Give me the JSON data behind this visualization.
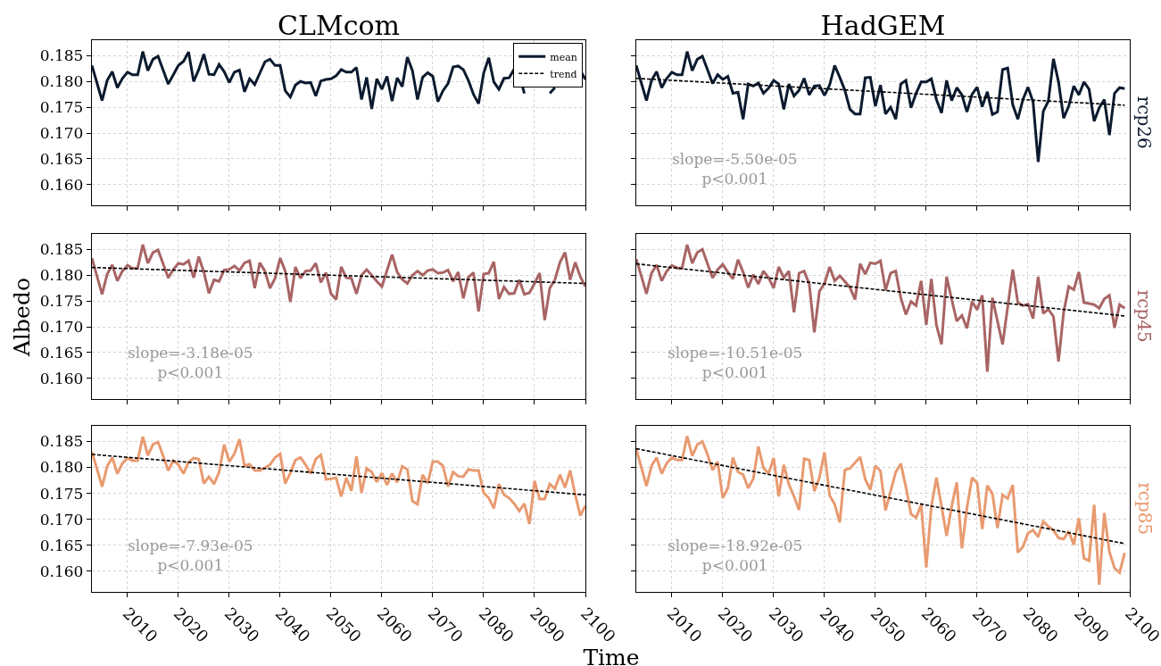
{
  "chart_data": [
    {
      "type": "line",
      "title": "CLMcom",
      "xlim": [
        2003,
        2100
      ],
      "xticks": [
        2010,
        2020,
        2030,
        2040,
        2050,
        2060,
        2070,
        2080,
        2090,
        2100
      ],
      "ylim": [
        0.156,
        0.188
      ],
      "yticks": [
        {
          "value": 0.16,
          "label": "0.160"
        },
        0.165,
        {
          "value": 0.17,
          "label": "0.170"
        },
        0.175,
        {
          "value": 0.18,
          "label": "0.180"
        },
        0.185
      ],
      "grid": true,
      "legend": "top right",
      "tick_labels": "y",
      "line_style": "solid",
      "x": [
        2003,
        2004,
        2005,
        2006,
        2007,
        2008,
        2009,
        2010,
        2011,
        2012,
        2013,
        2014,
        2015,
        2016,
        2017,
        2018,
        2019,
        2020,
        2021,
        2022,
        2023,
        2024,
        2025,
        2026,
        2027,
        2028,
        2029,
        2030,
        2031,
        2032,
        2033,
        2034,
        2035,
        2036,
        2037,
        2038,
        2039,
        2040,
        2041,
        2042,
        2043,
        2044,
        2045,
        2046,
        2047,
        2048,
        2049,
        2050,
        2051,
        2052,
        2053,
        2054,
        2055,
        2056,
        2057,
        2058,
        2059,
        2060,
        2061,
        2062,
        2063,
        2064,
        2065,
        2066,
        2067,
        2068,
        2069,
        2070,
        2071,
        2072,
        2073,
        2074,
        2075,
        2076,
        2077,
        2078,
        2079,
        2080,
        2081,
        2082,
        2083,
        2084,
        2085,
        2086,
        2087,
        2088,
        2089,
        2090,
        2091,
        2092,
        2093,
        2094,
        2095,
        2096,
        2097,
        2098,
        2099,
        2100
      ],
      "series": [
        {
          "name": "mean",
          "color": "#0b1a2e",
          "values": [
            0.1831,
            0.1797,
            0.1763,
            0.1802,
            0.1819,
            0.1788,
            0.1806,
            0.1818,
            0.1813,
            0.1813,
            0.1858,
            0.1821,
            0.1843,
            0.1849,
            0.1822,
            0.1795,
            0.1813,
            0.1831,
            0.1839,
            0.1857,
            0.18,
            0.1823,
            0.1853,
            0.1814,
            0.1813,
            0.1833,
            0.1819,
            0.1798,
            0.1818,
            0.1822,
            0.178,
            0.1805,
            0.1794,
            0.1816,
            0.1838,
            0.1843,
            0.1831,
            0.1831,
            0.1782,
            0.177,
            0.1793,
            0.18,
            0.1797,
            0.1798,
            0.1772,
            0.1801,
            0.1804,
            0.1805,
            0.1811,
            0.1823,
            0.1818,
            0.1818,
            0.1827,
            0.1765,
            0.1808,
            0.1747,
            0.1805,
            0.1785,
            0.181,
            0.1762,
            0.1807,
            0.179,
            0.1847,
            0.1821,
            0.1765,
            0.1808,
            0.1817,
            0.181,
            0.1761,
            0.1782,
            0.1796,
            0.1828,
            0.183,
            0.1823,
            0.1802,
            0.1775,
            0.1757,
            0.1816,
            0.1846,
            0.1799,
            0.1785,
            0.1806,
            0.1807,
            0.1824,
            0.1813,
            0.1777,
            null,
            null,
            null,
            null,
            0.1777,
            0.1788,
            null,
            null,
            null,
            null,
            0.1821,
            0.1804
          ]
        },
        {
          "name": "trend",
          "type": "line",
          "line_style": "dashed",
          "color": "#000000",
          "values": [
            null,
            null,
            null,
            null,
            null,
            null,
            null,
            null,
            null,
            null,
            null,
            null,
            null,
            null,
            null,
            null,
            null,
            null,
            null,
            null,
            null,
            null,
            null,
            null,
            null,
            null,
            null,
            null,
            null,
            null,
            null,
            null,
            null,
            null,
            null,
            null,
            null,
            null,
            null,
            null,
            null,
            null,
            null,
            null,
            null,
            null,
            null,
            null,
            null,
            null,
            null,
            null,
            null,
            null,
            null,
            null,
            null,
            null,
            null,
            null,
            null,
            null,
            null,
            null,
            null,
            null,
            null,
            null,
            null,
            null,
            null,
            null,
            null,
            null,
            null,
            null,
            null,
            null,
            null,
            null,
            null,
            null,
            null,
            null,
            null,
            null,
            null,
            null,
            null,
            null,
            null,
            null,
            null,
            null,
            null,
            null,
            null,
            null
          ]
        }
      ]
    },
    {
      "type": "line",
      "title": "HadGEM",
      "y2label": "rcp26",
      "annotations": [
        "slope=-5.50e-05\np<0.001"
      ],
      "xlim": [
        2003,
        2100
      ],
      "xticks": [
        2010,
        2020,
        2030,
        2040,
        2050,
        2060,
        2070,
        2080,
        2090,
        2100
      ],
      "ylim": [
        0.156,
        0.188
      ],
      "yticks": [
        {
          "value": 0.16,
          "label": null
        },
        {
          "value": 0.165,
          "label": null
        },
        {
          "value": 0.17,
          "label": null
        },
        {
          "value": 0.175,
          "label": null
        },
        {
          "value": 0.18,
          "label": null
        },
        {
          "value": 0.185,
          "label": null
        }
      ],
      "grid": true,
      "tick_labels": false,
      "line_style": "solid",
      "x": [
        2003,
        2004,
        2005,
        2006,
        2007,
        2008,
        2009,
        2010,
        2011,
        2012,
        2013,
        2014,
        2015,
        2016,
        2017,
        2018,
        2019,
        2020,
        2021,
        2022,
        2023,
        2024,
        2025,
        2026,
        2027,
        2028,
        2029,
        2030,
        2031,
        2032,
        2033,
        2034,
        2035,
        2036,
        2037,
        2038,
        2039,
        2040,
        2041,
        2042,
        2043,
        2044,
        2045,
        2046,
        2047,
        2048,
        2049,
        2050,
        2051,
        2052,
        2053,
        2054,
        2055,
        2056,
        2057,
        2058,
        2059,
        2060,
        2061,
        2062,
        2063,
        2064,
        2065,
        2066,
        2067,
        2068,
        2069,
        2070,
        2071,
        2072,
        2073,
        2074,
        2075,
        2076,
        2077,
        2078,
        2079,
        2080,
        2081,
        2082,
        2083,
        2084,
        2085,
        2086,
        2087,
        2088,
        2089,
        2090,
        2091,
        2092,
        2093,
        2094,
        2095,
        2096,
        2097,
        2098,
        2099
      ],
      "series": [
        {
          "color": "#0b1a2e",
          "values": [
            0.1831,
            0.1797,
            0.1763,
            0.1802,
            0.1819,
            0.1788,
            0.1806,
            0.1818,
            0.1813,
            0.1813,
            0.1858,
            0.1821,
            0.1843,
            0.1849,
            0.1823,
            0.1796,
            0.1813,
            0.1804,
            0.181,
            0.1777,
            0.1779,
            0.1727,
            0.1795,
            0.1791,
            0.1797,
            0.1777,
            0.1787,
            0.1802,
            0.1795,
            0.1746,
            0.1795,
            0.1772,
            0.1783,
            0.1806,
            0.1774,
            0.1791,
            0.1792,
            0.1773,
            0.1793,
            0.1831,
            0.1808,
            0.1783,
            0.1746,
            0.1737,
            0.1737,
            0.1807,
            0.1808,
            0.1752,
            0.1793,
            0.1737,
            0.175,
            0.1727,
            0.1795,
            0.1802,
            0.1749,
            0.1777,
            0.1799,
            0.1799,
            0.1805,
            0.1765,
            0.1739,
            0.1802,
            0.1763,
            0.1788,
            0.1774,
            0.1741,
            0.1775,
            0.1789,
            0.1751,
            0.178,
            0.1736,
            0.1741,
            0.1823,
            0.1826,
            0.1755,
            0.1727,
            0.1765,
            0.1789,
            0.176,
            0.1644,
            0.1742,
            0.1762,
            0.1844,
            0.1799,
            0.1729,
            0.1752,
            0.1791,
            0.1774,
            0.1799,
            0.1785,
            0.1723,
            0.1749,
            0.1765,
            0.1696,
            0.1777,
            0.1788,
            0.1786
          ]
        },
        {
          "type": "line",
          "line_style": "dashed",
          "color": "#000000",
          "x": [
            2003,
            2099
          ],
          "values": [
            0.1806,
            0.1754
          ]
        }
      ]
    },
    {
      "type": "line",
      "ylabel": "Albedo",
      "annotations": [
        "slope=-3.18e-05\np<0.001"
      ],
      "xlim": [
        2003,
        2100
      ],
      "xticks": [
        2010,
        2020,
        2030,
        2040,
        2050,
        2060,
        2070,
        2080,
        2090,
        2100
      ],
      "ylim": [
        0.156,
        0.188
      ],
      "yticks": [
        {
          "value": 0.16,
          "label": "0.160"
        },
        0.165,
        {
          "value": 0.17,
          "label": "0.170"
        },
        0.175,
        {
          "value": 0.18,
          "label": "0.180"
        },
        0.185
      ],
      "grid": true,
      "tick_labels": "y",
      "line_style": "solid",
      "x": [
        2003,
        2004,
        2005,
        2006,
        2007,
        2008,
        2009,
        2010,
        2011,
        2012,
        2013,
        2014,
        2015,
        2016,
        2017,
        2018,
        2019,
        2020,
        2021,
        2022,
        2023,
        2024,
        2025,
        2026,
        2027,
        2028,
        2029,
        2030,
        2031,
        2032,
        2033,
        2034,
        2035,
        2036,
        2037,
        2038,
        2039,
        2040,
        2041,
        2042,
        2043,
        2044,
        2045,
        2046,
        2047,
        2048,
        2049,
        2050,
        2051,
        2052,
        2053,
        2054,
        2055,
        2056,
        2057,
        2058,
        2059,
        2060,
        2061,
        2062,
        2063,
        2064,
        2065,
        2066,
        2067,
        2068,
        2069,
        2070,
        2071,
        2072,
        2073,
        2074,
        2075,
        2076,
        2077,
        2078,
        2079,
        2080,
        2081,
        2082,
        2083,
        2084,
        2085,
        2086,
        2087,
        2088,
        2089,
        2090,
        2091,
        2092,
        2093,
        2094,
        2095,
        2096,
        2097,
        2098,
        2099,
        2100
      ],
      "series": [
        {
          "color": "#a86464",
          "values": [
            0.1833,
            0.1798,
            0.1763,
            0.1802,
            0.182,
            0.1789,
            0.1808,
            0.1819,
            0.1813,
            0.1814,
            0.1859,
            0.1823,
            0.1844,
            0.1849,
            0.1822,
            0.1795,
            0.1811,
            0.1823,
            0.1821,
            0.1828,
            0.1795,
            0.1836,
            0.1806,
            0.1765,
            0.1791,
            0.1788,
            0.181,
            0.1811,
            0.1818,
            0.1809,
            0.1824,
            0.1828,
            0.1775,
            0.1824,
            0.1808,
            0.1775,
            0.1794,
            0.1833,
            0.1808,
            0.1748,
            0.1816,
            0.1794,
            0.1808,
            0.1809,
            0.1823,
            0.1786,
            0.1805,
            0.1764,
            0.1753,
            0.1816,
            0.1795,
            0.1794,
            0.1764,
            0.18,
            0.1811,
            0.18,
            0.1788,
            0.1778,
            0.1809,
            0.184,
            0.1806,
            0.1792,
            0.1784,
            0.18,
            0.1808,
            0.18,
            0.1809,
            0.1811,
            0.1804,
            0.1805,
            0.181,
            0.1788,
            0.1806,
            0.1755,
            0.1796,
            0.1805,
            0.173,
            0.1802,
            0.1804,
            0.1826,
            0.1754,
            0.1777,
            0.1764,
            0.1765,
            0.1791,
            0.1763,
            0.1766,
            0.1784,
            0.1804,
            0.1713,
            0.1775,
            0.1791,
            0.1825,
            0.1844,
            0.1791,
            0.1825,
            0.1797,
            0.1778
          ]
        },
        {
          "type": "line",
          "line_style": "dashed",
          "color": "#000000",
          "x": [
            2003,
            2100
          ],
          "values": [
            0.1815,
            0.1784
          ]
        }
      ]
    },
    {
      "type": "line",
      "y2label": "rcp45",
      "annotations": [
        "slope=-10.51e-05\np<0.001"
      ],
      "xlim": [
        2003,
        2100
      ],
      "xticks": [
        2010,
        2020,
        2030,
        2040,
        2050,
        2060,
        2070,
        2080,
        2090,
        2100
      ],
      "ylim": [
        0.156,
        0.188
      ],
      "yticks": [
        {
          "value": 0.16,
          "label": null
        },
        {
          "value": 0.165,
          "label": null
        },
        {
          "value": 0.17,
          "label": null
        },
        {
          "value": 0.175,
          "label": null
        },
        {
          "value": 0.18,
          "label": null
        },
        {
          "value": 0.185,
          "label": null
        }
      ],
      "grid": true,
      "tick_labels": false,
      "line_style": "solid",
      "x": [
        2003,
        2004,
        2005,
        2006,
        2007,
        2008,
        2009,
        2010,
        2011,
        2012,
        2013,
        2014,
        2015,
        2016,
        2017,
        2018,
        2019,
        2020,
        2021,
        2022,
        2023,
        2024,
        2025,
        2026,
        2027,
        2028,
        2029,
        2030,
        2031,
        2032,
        2033,
        2034,
        2035,
        2036,
        2037,
        2038,
        2039,
        2040,
        2041,
        2042,
        2043,
        2044,
        2045,
        2046,
        2047,
        2048,
        2049,
        2050,
        2051,
        2052,
        2053,
        2054,
        2055,
        2056,
        2057,
        2058,
        2059,
        2060,
        2061,
        2062,
        2063,
        2064,
        2065,
        2066,
        2067,
        2068,
        2069,
        2070,
        2071,
        2072,
        2073,
        2074,
        2075,
        2076,
        2077,
        2078,
        2079,
        2080,
        2081,
        2082,
        2083,
        2084,
        2085,
        2086,
        2087,
        2088,
        2089,
        2090,
        2091,
        2092,
        2093,
        2094,
        2095,
        2096,
        2097,
        2098,
        2099
      ],
      "series": [
        {
          "color": "#a86464",
          "values": [
            0.1831,
            0.1798,
            0.1764,
            0.1804,
            0.182,
            0.1789,
            0.1808,
            0.1819,
            0.1814,
            0.1814,
            0.1859,
            0.1823,
            0.1844,
            0.185,
            0.1822,
            0.1795,
            0.1811,
            0.1821,
            0.1806,
            0.1793,
            0.183,
            0.1806,
            0.1776,
            0.1801,
            0.1783,
            0.1808,
            0.1795,
            0.1775,
            0.1816,
            0.1795,
            0.1808,
            0.1728,
            0.1804,
            0.1808,
            0.1783,
            0.1689,
            0.1769,
            0.1784,
            0.1816,
            0.1789,
            0.1799,
            0.1788,
            0.1776,
            0.1753,
            0.1822,
            0.1802,
            0.1824,
            0.1822,
            0.1828,
            0.1771,
            0.1804,
            0.1808,
            0.1756,
            0.1724,
            0.1749,
            0.1741,
            0.1789,
            0.1704,
            0.1793,
            0.1703,
            0.1666,
            0.1797,
            0.1753,
            0.1711,
            0.1722,
            0.1697,
            0.1749,
            0.1733,
            0.1761,
            0.1613,
            0.1756,
            0.1711,
            0.1666,
            0.1738,
            0.1811,
            0.1747,
            0.1741,
            0.1744,
            0.1716,
            0.1797,
            0.1726,
            0.1734,
            0.172,
            0.1633,
            0.1728,
            0.1778,
            0.1772,
            0.1806,
            0.1747,
            0.1745,
            0.1743,
            0.1736,
            0.1754,
            0.1761,
            0.1698,
            0.1743,
            0.1736
          ]
        },
        {
          "type": "line",
          "line_style": "dashed",
          "color": "#000000",
          "x": [
            2003,
            2099
          ],
          "values": [
            0.1822,
            0.1721
          ]
        }
      ]
    },
    {
      "type": "line",
      "xlabel": "Time",
      "annotations": [
        "slope=-7.93e-05\np<0.001"
      ],
      "xlim": [
        2003,
        2100
      ],
      "xticks": [
        2010,
        2020,
        2030,
        2040,
        2050,
        2060,
        2070,
        2080,
        2090,
        2100
      ],
      "ylim": [
        0.156,
        0.188
      ],
      "yticks": [
        {
          "value": 0.16,
          "label": "0.160"
        },
        0.165,
        {
          "value": 0.17,
          "label": "0.170"
        },
        0.175,
        {
          "value": 0.18,
          "label": "0.180"
        },
        0.185
      ],
      "grid": true,
      "line_style": "solid",
      "x": [
        2003,
        2004,
        2005,
        2006,
        2007,
        2008,
        2009,
        2010,
        2011,
        2012,
        2013,
        2014,
        2015,
        2016,
        2017,
        2018,
        2019,
        2020,
        2021,
        2022,
        2023,
        2024,
        2025,
        2026,
        2027,
        2028,
        2029,
        2030,
        2031,
        2032,
        2033,
        2034,
        2035,
        2036,
        2037,
        2038,
        2039,
        2040,
        2041,
        2042,
        2043,
        2044,
        2045,
        2046,
        2047,
        2048,
        2049,
        2050,
        2051,
        2052,
        2053,
        2054,
        2055,
        2056,
        2057,
        2058,
        2059,
        2060,
        2061,
        2062,
        2063,
        2064,
        2065,
        2066,
        2067,
        2068,
        2069,
        2070,
        2071,
        2072,
        2073,
        2074,
        2075,
        2076,
        2077,
        2078,
        2079,
        2080,
        2081,
        2082,
        2083,
        2084,
        2085,
        2086,
        2087,
        2088,
        2089,
        2090,
        2091,
        2092,
        2093,
        2094,
        2095,
        2096,
        2097,
        2098,
        2099,
        2100
      ],
      "series": [
        {
          "color": "#e89a70",
          "values": [
            0.183,
            0.1797,
            0.1763,
            0.1802,
            0.1819,
            0.1788,
            0.1808,
            0.1818,
            0.1813,
            0.1813,
            0.1859,
            0.1823,
            0.1844,
            0.1849,
            0.1822,
            0.1794,
            0.1813,
            0.1805,
            0.1788,
            0.181,
            0.1818,
            0.1816,
            0.1769,
            0.1782,
            0.1768,
            0.1791,
            0.1844,
            0.1811,
            0.1826,
            0.1854,
            0.1803,
            0.1806,
            0.1794,
            0.1794,
            0.1799,
            0.1805,
            0.1819,
            0.1826,
            0.1769,
            0.1789,
            0.1814,
            0.1819,
            0.1805,
            0.1788,
            0.1816,
            0.1824,
            0.1777,
            0.1778,
            0.178,
            0.1744,
            0.178,
            0.1755,
            0.1821,
            0.1751,
            0.1798,
            0.1791,
            0.1772,
            0.1789,
            0.1766,
            0.1788,
            0.1771,
            0.1802,
            0.1796,
            0.1735,
            0.1729,
            0.1786,
            0.1769,
            0.1811,
            0.1811,
            0.1803,
            0.1763,
            0.1791,
            0.1783,
            0.1782,
            0.1796,
            0.1794,
            0.1794,
            0.1751,
            0.1741,
            0.1721,
            0.1768,
            0.1747,
            0.1741,
            0.173,
            0.1716,
            0.173,
            0.1691,
            0.1774,
            0.1739,
            0.1739,
            0.1768,
            0.1759,
            0.1786,
            0.1761,
            0.1794,
            0.1747,
            0.1707,
            0.1726
          ]
        },
        {
          "type": "line",
          "line_style": "dashed",
          "color": "#000000",
          "x": [
            2003,
            2100
          ],
          "values": [
            0.1825,
            0.1747
          ]
        }
      ]
    },
    {
      "type": "line",
      "y2label": "rcp85",
      "annotations": [
        "slope=-18.92e-05\np<0.001"
      ],
      "xlim": [
        2003,
        2100
      ],
      "xticks": [
        2010,
        2020,
        2030,
        2040,
        2050,
        2060,
        2070,
        2080,
        2090,
        2100
      ],
      "ylim": [
        0.156,
        0.188
      ],
      "yticks": [
        {
          "value": 0.16,
          "label": null
        },
        {
          "value": 0.165,
          "label": null
        },
        {
          "value": 0.17,
          "label": null
        },
        {
          "value": 0.175,
          "label": null
        },
        {
          "value": 0.18,
          "label": null
        },
        {
          "value": 0.185,
          "label": null
        }
      ],
      "grid": true,
      "tick_labels": "x",
      "line_style": "solid",
      "x": [
        2003,
        2004,
        2005,
        2006,
        2007,
        2008,
        2009,
        2010,
        2011,
        2012,
        2013,
        2014,
        2015,
        2016,
        2017,
        2018,
        2019,
        2020,
        2021,
        2022,
        2023,
        2024,
        2025,
        2026,
        2027,
        2028,
        2029,
        2030,
        2031,
        2032,
        2033,
        2034,
        2035,
        2036,
        2037,
        2038,
        2039,
        2040,
        2041,
        2042,
        2043,
        2044,
        2045,
        2046,
        2047,
        2048,
        2049,
        2050,
        2051,
        2052,
        2053,
        2054,
        2055,
        2056,
        2057,
        2058,
        2059,
        2060,
        2061,
        2062,
        2063,
        2064,
        2065,
        2066,
        2067,
        2068,
        2069,
        2070,
        2071,
        2072,
        2073,
        2074,
        2075,
        2076,
        2077,
        2078,
        2079,
        2080,
        2081,
        2082,
        2083,
        2084,
        2085,
        2086,
        2087,
        2088,
        2089,
        2090,
        2091,
        2092,
        2093,
        2094,
        2095,
        2096,
        2097,
        2098,
        2099
      ],
      "series": [
        {
          "color": "#e89a70",
          "values": [
            0.1835,
            0.18,
            0.1764,
            0.1803,
            0.1819,
            0.1788,
            0.1808,
            0.1819,
            0.1814,
            0.1814,
            0.186,
            0.1822,
            0.1844,
            0.185,
            0.1825,
            0.1795,
            0.1811,
            0.1741,
            0.176,
            0.1819,
            0.1791,
            0.1786,
            0.176,
            0.1778,
            0.184,
            0.1799,
            0.1788,
            0.1818,
            0.1744,
            0.1805,
            0.1767,
            0.1744,
            0.1718,
            0.1817,
            0.1814,
            0.1754,
            0.178,
            0.1829,
            0.1746,
            0.1729,
            0.1694,
            0.1795,
            0.1798,
            0.1809,
            0.182,
            0.1777,
            0.1757,
            0.1803,
            0.1793,
            0.1717,
            0.1754,
            0.1791,
            0.1807,
            0.1762,
            0.171,
            0.1703,
            0.1728,
            0.1607,
            0.1725,
            0.178,
            0.1725,
            0.1668,
            0.1725,
            0.1771,
            0.1644,
            0.1722,
            0.178,
            0.177,
            0.1681,
            0.1765,
            0.1749,
            0.1683,
            0.1747,
            0.174,
            0.1766,
            0.1636,
            0.1647,
            0.1673,
            0.1679,
            0.1666,
            0.1696,
            0.1686,
            0.1679,
            0.1664,
            0.1662,
            0.1677,
            0.1651,
            0.1702,
            0.1625,
            0.162,
            0.1728,
            0.1574,
            0.1712,
            0.1637,
            0.1606,
            0.1597,
            0.1635
          ]
        },
        {
          "type": "line",
          "line_style": "dashed",
          "color": "#000000",
          "x": [
            2003,
            2099
          ],
          "values": [
            0.1836,
            0.1653
          ]
        }
      ]
    }
  ]
}
